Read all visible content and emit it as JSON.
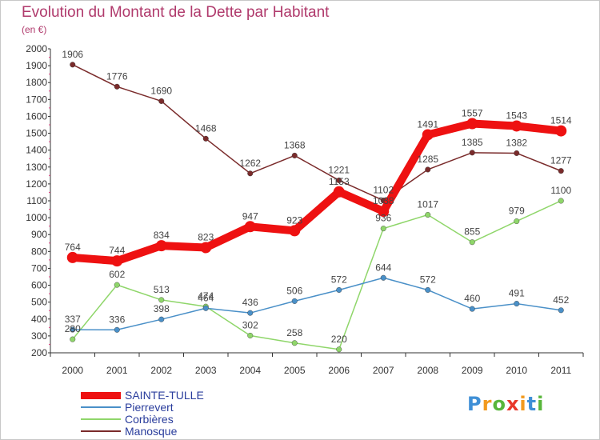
{
  "title": "Evolution du Montant de la Dette par Habitant",
  "subtitle": "(en €)",
  "logo_text": "Proxiti",
  "chart_data": {
    "type": "line",
    "x": [
      "2000",
      "2001",
      "2002",
      "2003",
      "2004",
      "2005",
      "2006",
      "2007",
      "2008",
      "2009",
      "2010",
      "2011"
    ],
    "yticks": [
      200,
      300,
      400,
      500,
      600,
      700,
      800,
      900,
      1000,
      1100,
      1200,
      1300,
      1400,
      1500,
      1600,
      1700,
      1800,
      1900,
      2000
    ],
    "ylim": [
      200,
      2000
    ],
    "grid": false,
    "legend_position": "bottom-left",
    "series": [
      {
        "name": "SAINTE-TULLE",
        "color": "#ee1111",
        "values": [
          764,
          744,
          834,
          823,
          947,
          923,
          1153,
          1038,
          1491,
          1557,
          1543,
          1514
        ]
      },
      {
        "name": "Pierrevert",
        "color": "#4a90c8",
        "values": [
          337,
          336,
          398,
          464,
          436,
          506,
          572,
          644,
          572,
          460,
          491,
          452
        ]
      },
      {
        "name": "Corbières",
        "color": "#8fd66a",
        "values": [
          280,
          602,
          513,
          474,
          302,
          258,
          220,
          936,
          1017,
          855,
          979,
          1100
        ]
      },
      {
        "name": "Manosque",
        "color": "#7a2b2b",
        "values": [
          1906,
          1776,
          1690,
          1468,
          1262,
          1368,
          1221,
          1102,
          1285,
          1385,
          1382,
          1277
        ]
      }
    ]
  }
}
